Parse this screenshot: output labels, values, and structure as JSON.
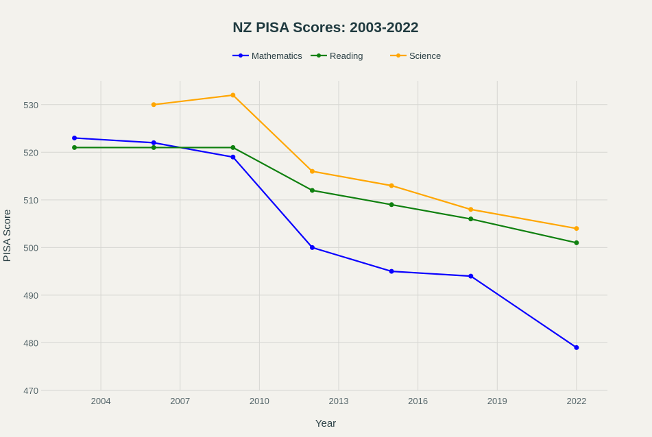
{
  "chart_data": {
    "type": "line",
    "title": "NZ PISA Scores: 2003-2022",
    "xlabel": "Year",
    "ylabel": "PISA Score",
    "xlim": [
      2001.74,
      2023.17
    ],
    "ylim": [
      470,
      535
    ],
    "xticks": [
      2004,
      2007,
      2010,
      2013,
      2016,
      2019,
      2022
    ],
    "yticks": [
      470,
      480,
      490,
      500,
      510,
      520,
      530
    ],
    "grid": true,
    "legend_position": "top-center",
    "series": [
      {
        "name": "Mathematics",
        "color": "#0a00ff",
        "x": [
          2003,
          2006,
          2009,
          2012,
          2015,
          2018,
          2022
        ],
        "y": [
          523,
          522,
          519,
          500,
          495,
          494,
          479
        ]
      },
      {
        "name": "Reading",
        "color": "#0f800f",
        "x": [
          2003,
          2006,
          2009,
          2012,
          2015,
          2018,
          2022
        ],
        "y": [
          521,
          521,
          521,
          512,
          509,
          506,
          501
        ]
      },
      {
        "name": "Science",
        "color": "#ffa600",
        "x": [
          2006,
          2009,
          2012,
          2015,
          2018,
          2022
        ],
        "y": [
          530,
          532,
          516,
          513,
          508,
          504
        ]
      }
    ]
  }
}
